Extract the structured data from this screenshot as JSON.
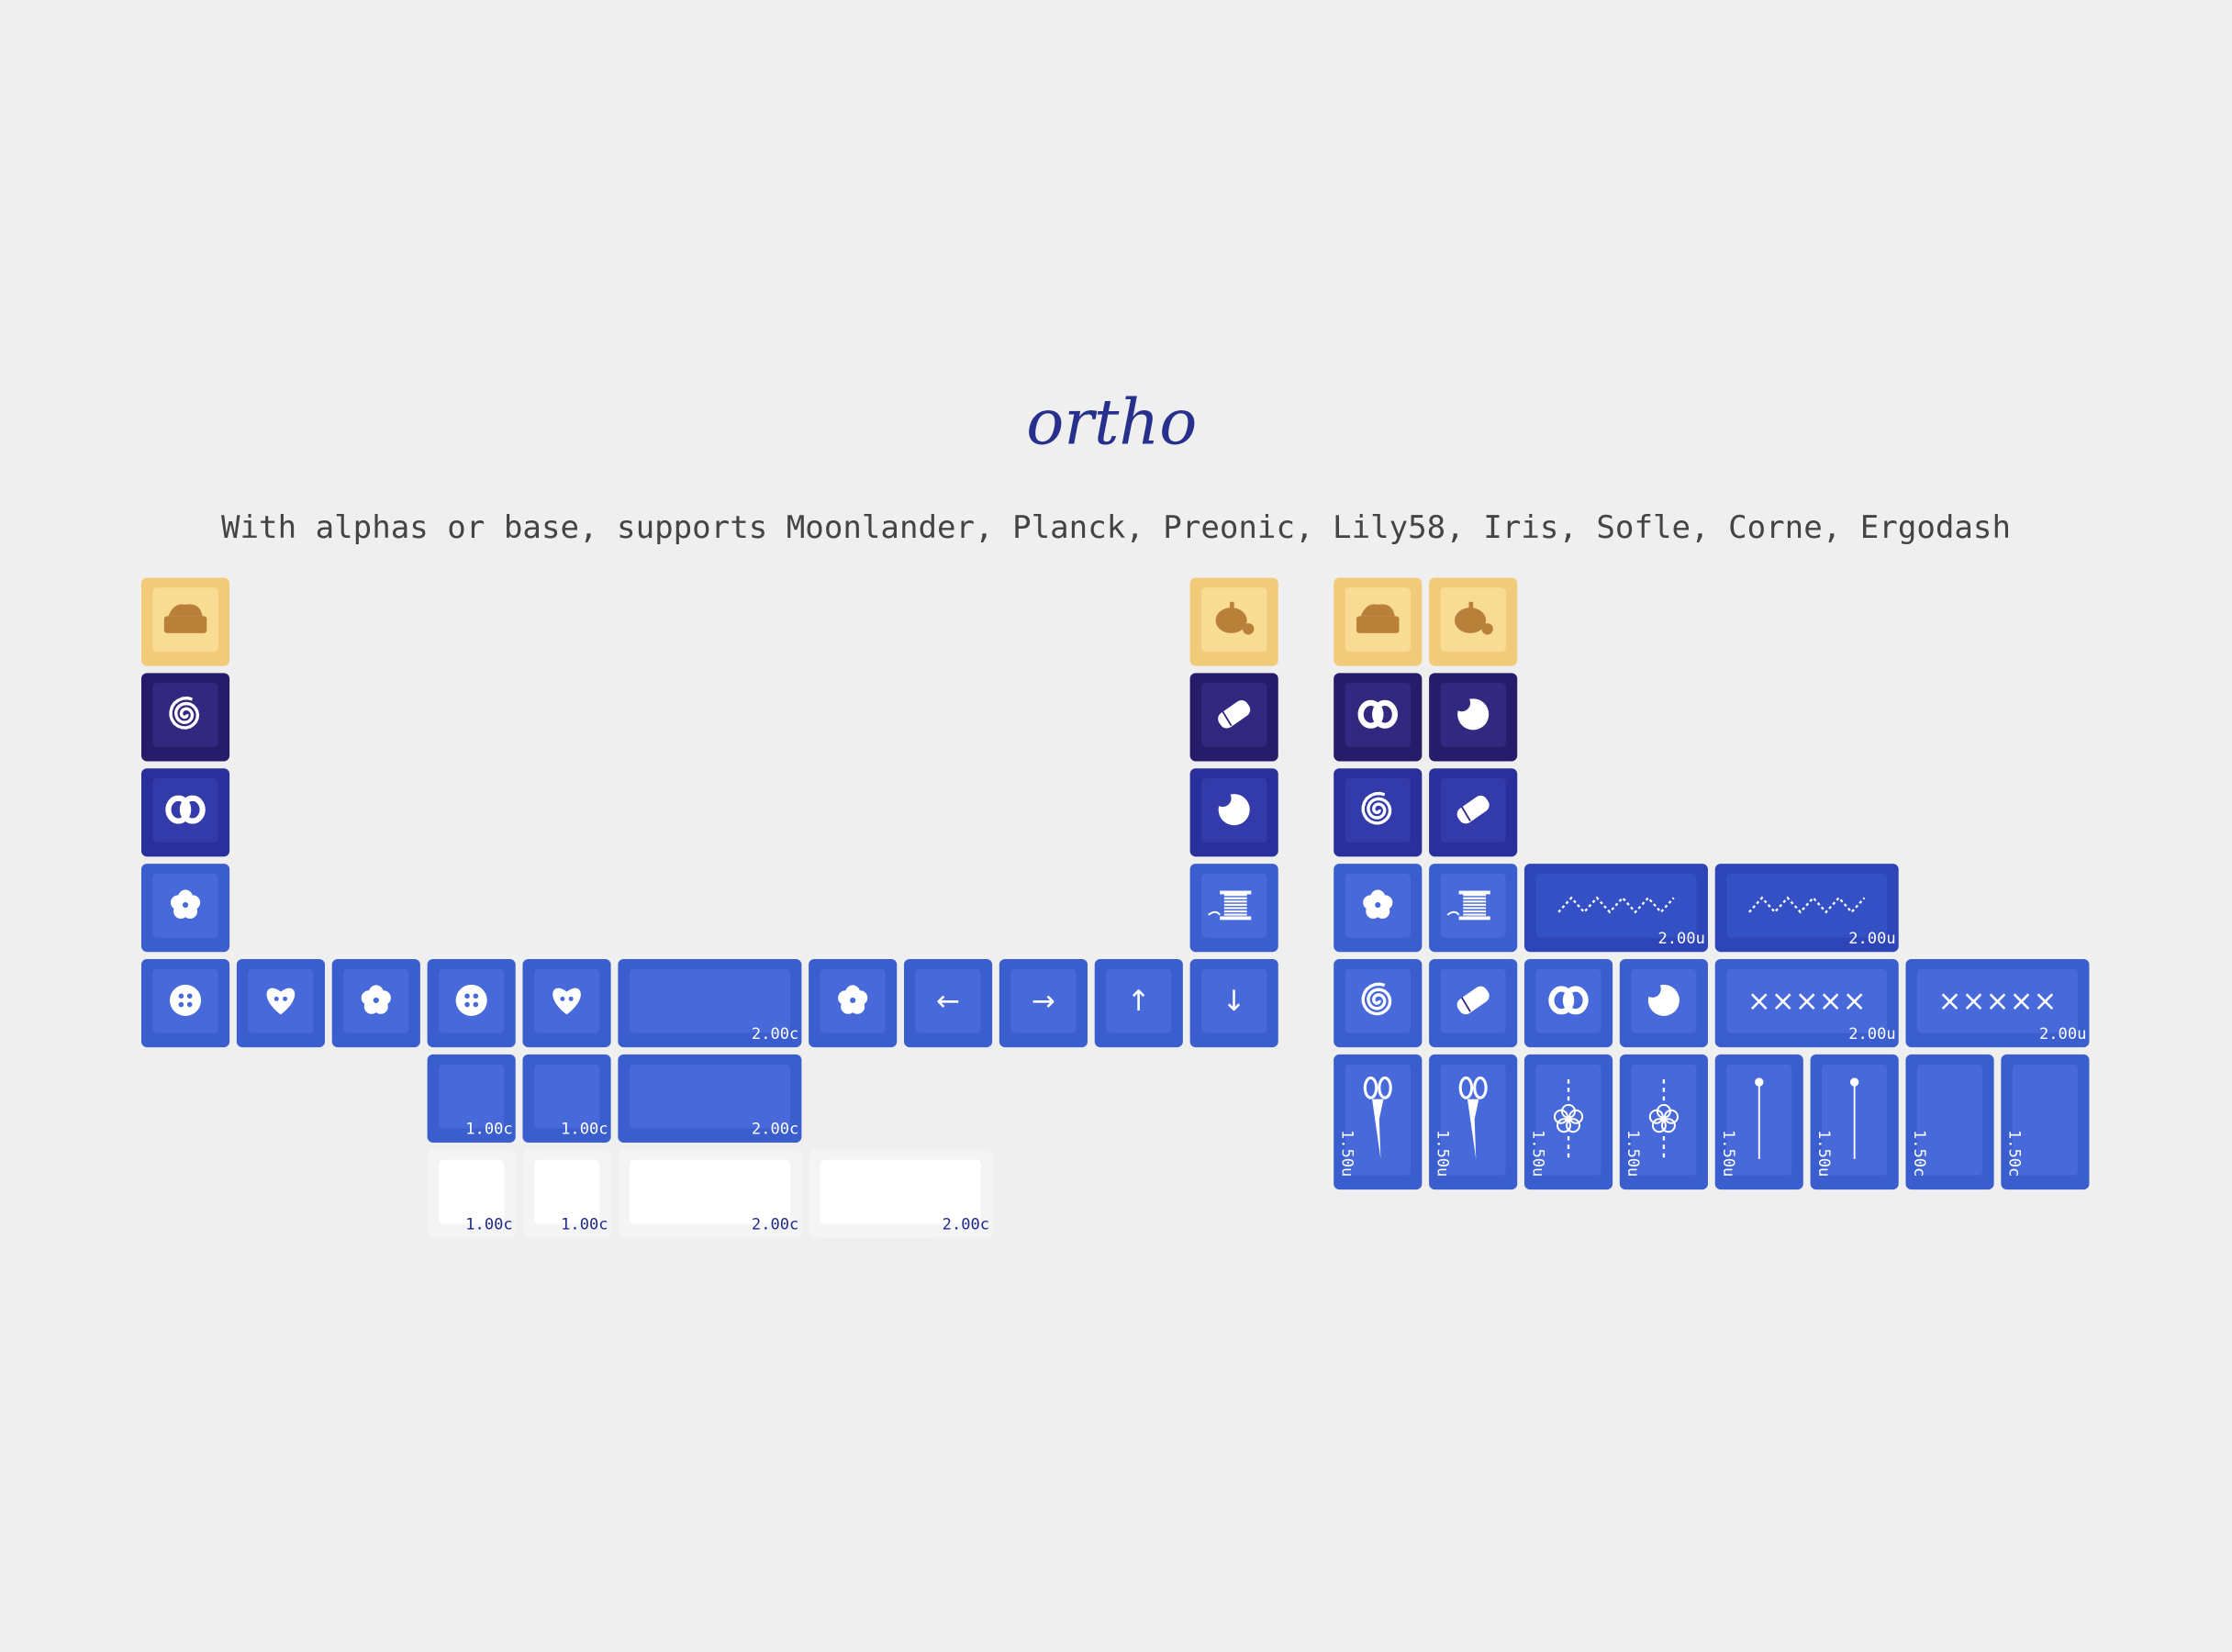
{
  "title": "ortho",
  "subtitle": "With alphas or base, supports Moonlander, Planck, Preonic, Lily58, Iris, Sofle, Corne, Ergodash",
  "left_block": {
    "arrow_keys": [
      "←",
      "→",
      "↑",
      "↓"
    ],
    "size_labels": [
      "2.00c",
      "1.00c",
      "1.00c",
      "2.00c",
      "1.00c",
      "1.00c",
      "2.00c",
      "2.00c"
    ]
  },
  "right_block": {
    "stitch_legends": [
      "×××××",
      "×××××"
    ],
    "size_labels": [
      "2.00u",
      "2.00u",
      "2.00u",
      "2.00u",
      "1.50u",
      "1.50u",
      "1.50u",
      "1.50u",
      "1.50u",
      "1.50u",
      "1.50c",
      "1.50c"
    ]
  }
}
